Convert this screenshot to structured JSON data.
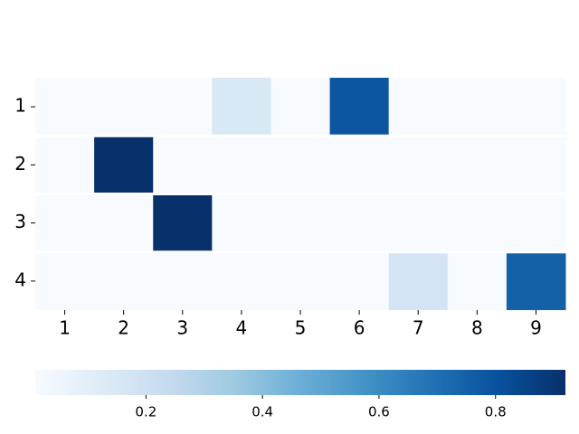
{
  "chart_data": {
    "type": "heatmap",
    "colormap": "Blues",
    "x_categories": [
      "1",
      "2",
      "3",
      "4",
      "5",
      "6",
      "7",
      "8",
      "9"
    ],
    "y_categories": [
      "1",
      "2",
      "3",
      "4"
    ],
    "values": [
      [
        0.01,
        0.01,
        0.01,
        0.147,
        0.01,
        0.79,
        0.01,
        0.01,
        0.01
      ],
      [
        0.01,
        0.92,
        0.01,
        0.01,
        0.01,
        0.01,
        0.01,
        0.01,
        0.01
      ],
      [
        0.01,
        0.01,
        0.92,
        0.01,
        0.01,
        0.01,
        0.01,
        0.01,
        0.01
      ],
      [
        0.01,
        0.01,
        0.01,
        0.01,
        0.01,
        0.01,
        0.17,
        0.01,
        0.75
      ]
    ],
    "colorbar_lim": [
      0.01,
      0.92
    ],
    "colorbar_ticks": [
      0.2,
      0.4,
      0.6,
      0.8
    ]
  }
}
